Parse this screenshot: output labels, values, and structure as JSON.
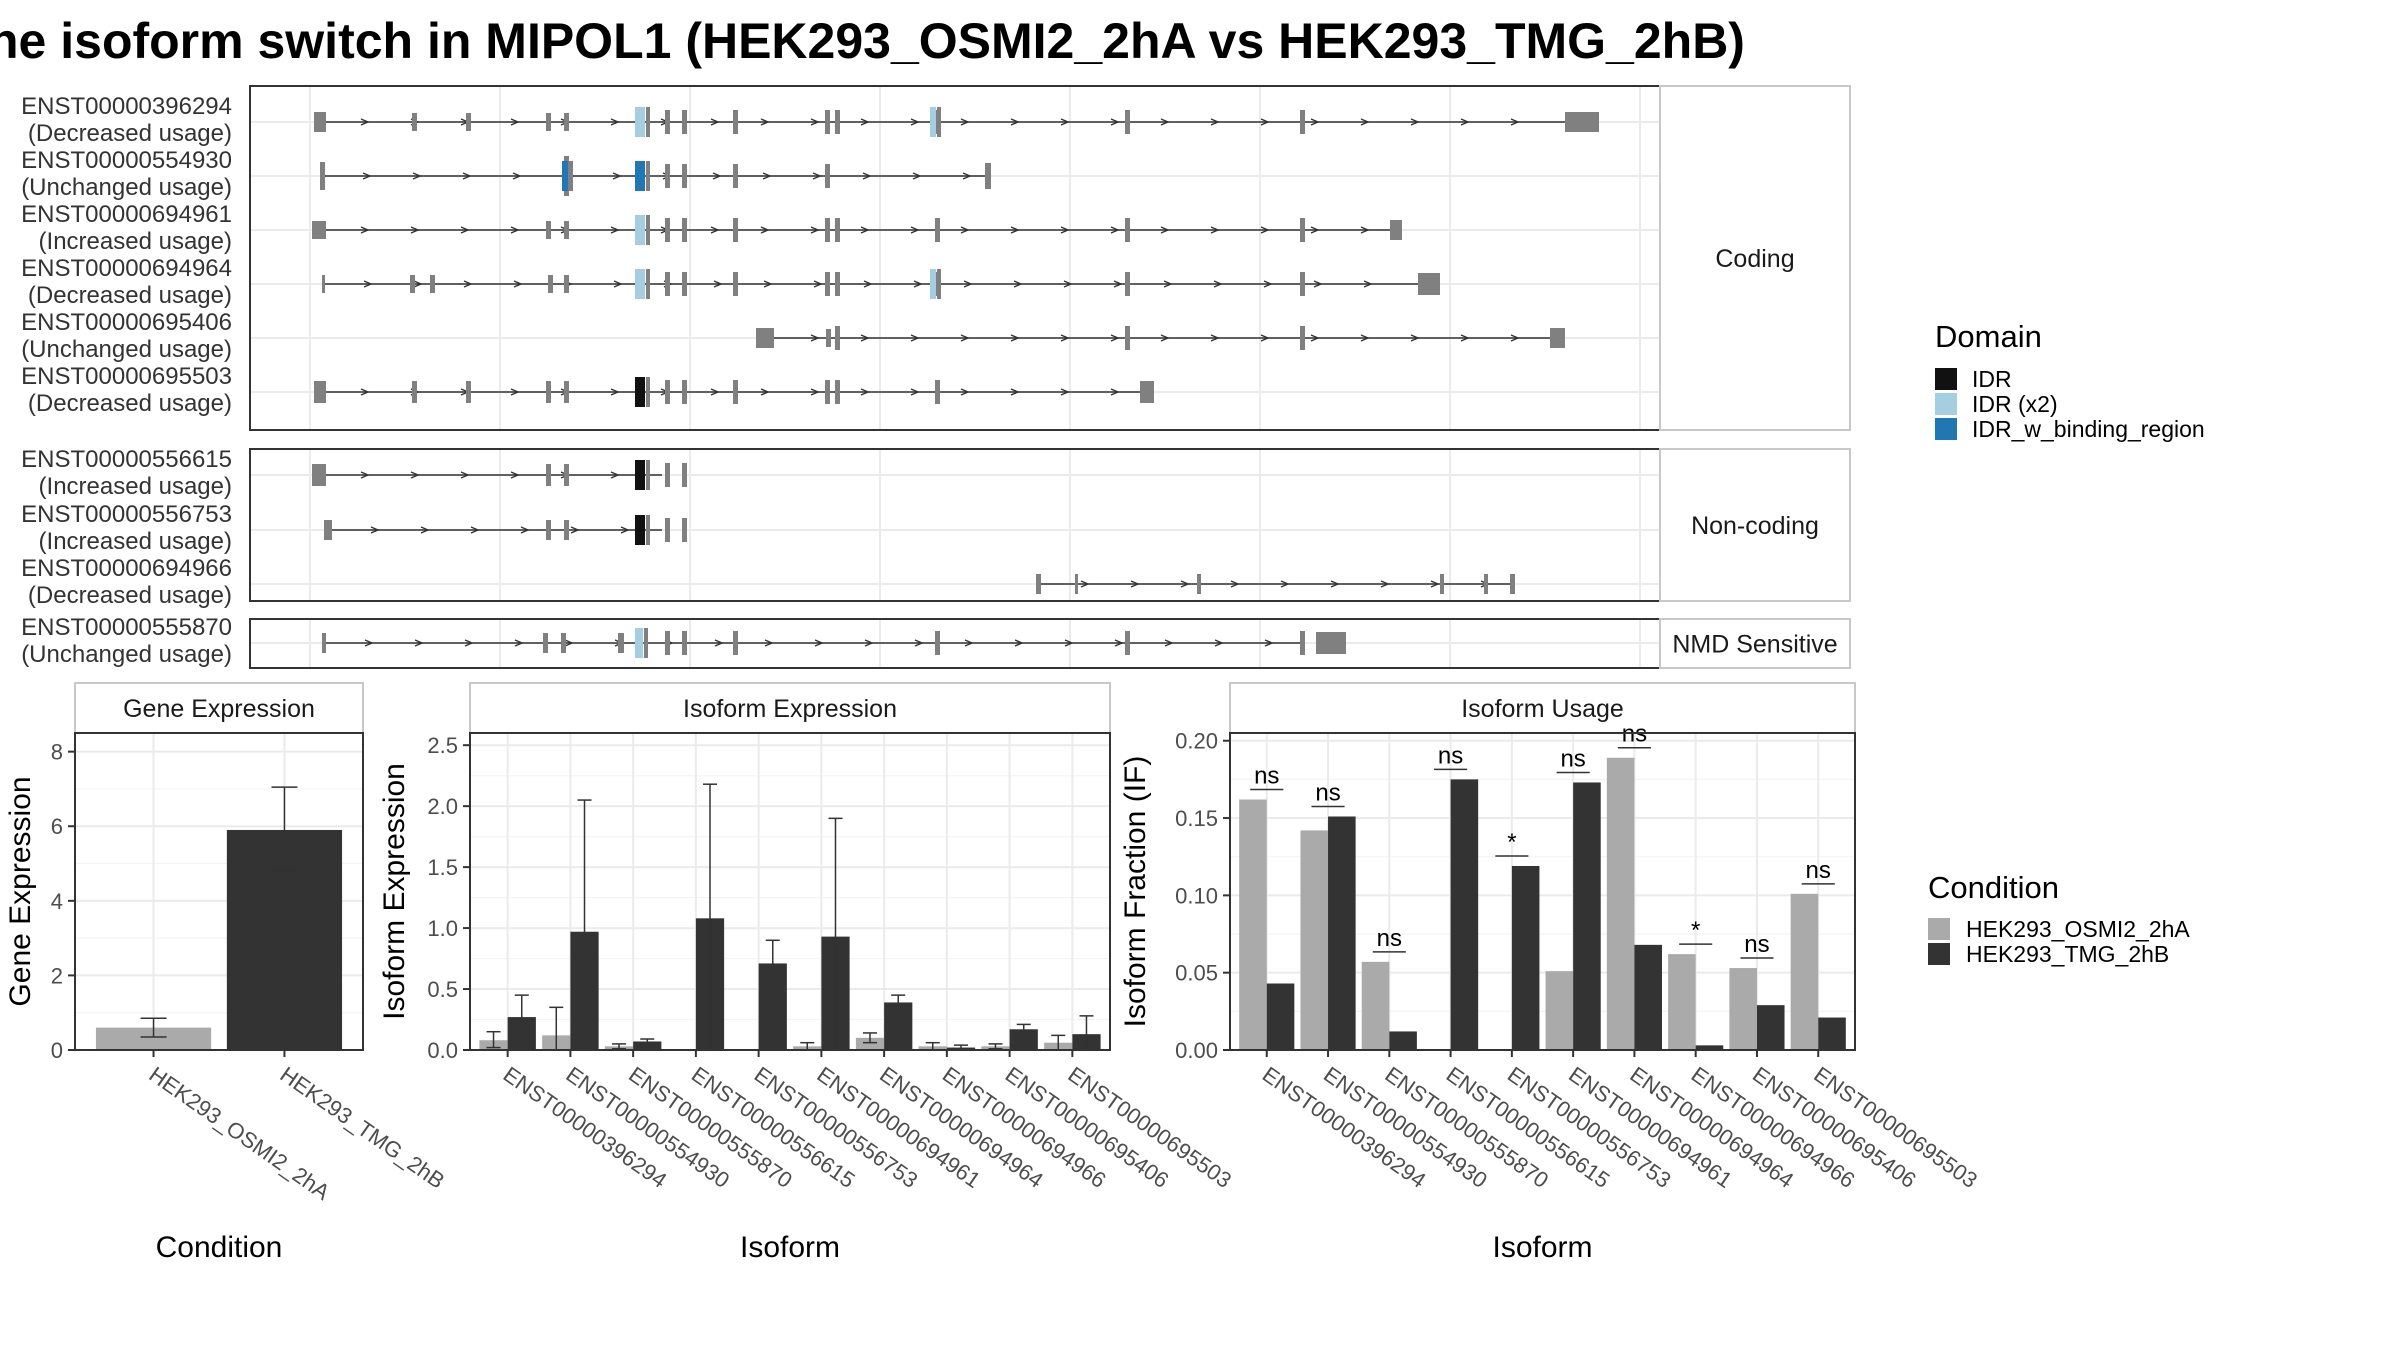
{
  "title": "he isoform switch in MIPOL1 (HEK293_OSMI2_2hA vs HEK293_TMG_2hB)",
  "colors": {
    "exon": "#808080",
    "IDR": "#111111",
    "IDR (x2)": "#a6cee3",
    "IDR_w_binding_region": "#1f78b4",
    "cond_a": "#aaaaaa",
    "cond_b": "#333333",
    "grid": "#ebebeb",
    "panel_border": "#333333",
    "strip_fill": "#ffffff"
  },
  "structure": {
    "groups": [
      {
        "name": "Coding",
        "transcripts": [
          {
            "id": "ENST00000396294",
            "usage": "(Decreased usage)"
          },
          {
            "id": "ENST00000554930",
            "usage": "(Unchanged usage)"
          },
          {
            "id": "ENST00000694961",
            "usage": "(Increased usage)"
          },
          {
            "id": "ENST00000694964",
            "usage": "(Decreased usage)"
          },
          {
            "id": "ENST00000695406",
            "usage": "(Unchanged usage)"
          },
          {
            "id": "ENST00000695503",
            "usage": "(Decreased usage)"
          }
        ]
      },
      {
        "name": "Non-coding",
        "transcripts": [
          {
            "id": "ENST00000556615",
            "usage": "(Increased usage)"
          },
          {
            "id": "ENST00000556753",
            "usage": "(Increased usage)"
          },
          {
            "id": "ENST00000694966",
            "usage": "(Decreased usage)"
          }
        ]
      },
      {
        "name": "NMD Sensitive",
        "transcripts": [
          {
            "id": "ENST00000555870",
            "usage": "(Unchanged usage)"
          }
        ]
      }
    ]
  },
  "legend_domain": {
    "title": "Domain",
    "items": [
      {
        "label": "IDR",
        "color": "#111111"
      },
      {
        "label": "IDR (x2)",
        "color": "#a6cee3"
      },
      {
        "label": "IDR_w_binding_region",
        "color": "#1f78b4"
      }
    ]
  },
  "legend_condition": {
    "title": "Condition",
    "items": [
      {
        "label": "HEK293_OSMI2_2hA",
        "color": "#aaaaaa"
      },
      {
        "label": "HEK293_TMG_2hB",
        "color": "#333333"
      }
    ]
  },
  "chart_data": [
    {
      "type": "bar",
      "title": "Gene Expression",
      "xlabel": "Condition",
      "ylabel": "Gene Expression",
      "ylim": [
        0,
        8.5
      ],
      "yticks": [
        0,
        2,
        4,
        6,
        8
      ],
      "categories": [
        "HEK293_OSMI2_2hA",
        "HEK293_TMG_2hB"
      ],
      "values": [
        0.6,
        5.9
      ],
      "err_low": [
        0.35,
        4.8
      ],
      "err_high": [
        0.85,
        7.05
      ]
    },
    {
      "type": "bar",
      "title": "Isoform Expression",
      "xlabel": "Isoform",
      "ylabel": "Isoform Expression",
      "ylim": [
        0,
        2.6
      ],
      "yticks": [
        "0.0",
        "0.5",
        "1.0",
        "1.5",
        "2.0",
        "2.5"
      ],
      "categories": [
        "ENST00000396294",
        "ENST00000554930",
        "ENST00000555870",
        "ENST00000556615",
        "ENST00000556753",
        "ENST00000694961",
        "ENST00000694964",
        "ENST00000694966",
        "ENST00000695406",
        "ENST00000695503"
      ],
      "series": [
        {
          "name": "HEK293_OSMI2_2hA",
          "values": [
            0.08,
            0.12,
            0.03,
            0.0,
            0.0,
            0.03,
            0.1,
            0.03,
            0.03,
            0.06
          ],
          "err_low": [
            0.02,
            0.0,
            0.01,
            0.0,
            0.0,
            0.0,
            0.06,
            0.0,
            0.01,
            0.0
          ],
          "err_high": [
            0.15,
            0.35,
            0.05,
            0.0,
            0.0,
            0.06,
            0.14,
            0.06,
            0.05,
            0.12
          ]
        },
        {
          "name": "HEK293_TMG_2hB",
          "values": [
            0.27,
            0.97,
            0.07,
            1.08,
            0.71,
            0.93,
            0.39,
            0.02,
            0.17,
            0.13
          ],
          "err_low": [
            0.1,
            0.0,
            0.05,
            0.0,
            0.52,
            0.0,
            0.32,
            0.0,
            0.13,
            0.0
          ],
          "err_high": [
            0.45,
            2.05,
            0.09,
            2.18,
            0.9,
            1.9,
            0.45,
            0.04,
            0.21,
            0.28
          ]
        }
      ]
    },
    {
      "type": "bar",
      "title": "Isoform Usage",
      "xlabel": "Isoform",
      "ylabel": "Isoform Fraction (IF)",
      "ylim": [
        0,
        0.205
      ],
      "yticks": [
        "0.00",
        "0.05",
        "0.10",
        "0.15",
        "0.20"
      ],
      "categories": [
        "ENST00000396294",
        "ENST00000554930",
        "ENST00000555870",
        "ENST00000556615",
        "ENST00000556753",
        "ENST00000694961",
        "ENST00000694964",
        "ENST00000694966",
        "ENST00000695406",
        "ENST00000695503"
      ],
      "series": [
        {
          "name": "HEK293_OSMI2_2hA",
          "values": [
            0.162,
            0.142,
            0.057,
            0.0,
            0.0,
            0.051,
            0.189,
            0.062,
            0.053,
            0.101
          ]
        },
        {
          "name": "HEK293_TMG_2hB",
          "values": [
            0.043,
            0.151,
            0.012,
            0.175,
            0.119,
            0.173,
            0.068,
            0.003,
            0.029,
            0.021
          ]
        }
      ],
      "significance": [
        "ns",
        "ns",
        "ns",
        "ns",
        "*",
        "ns",
        "ns",
        "*",
        "ns",
        "ns"
      ]
    }
  ]
}
